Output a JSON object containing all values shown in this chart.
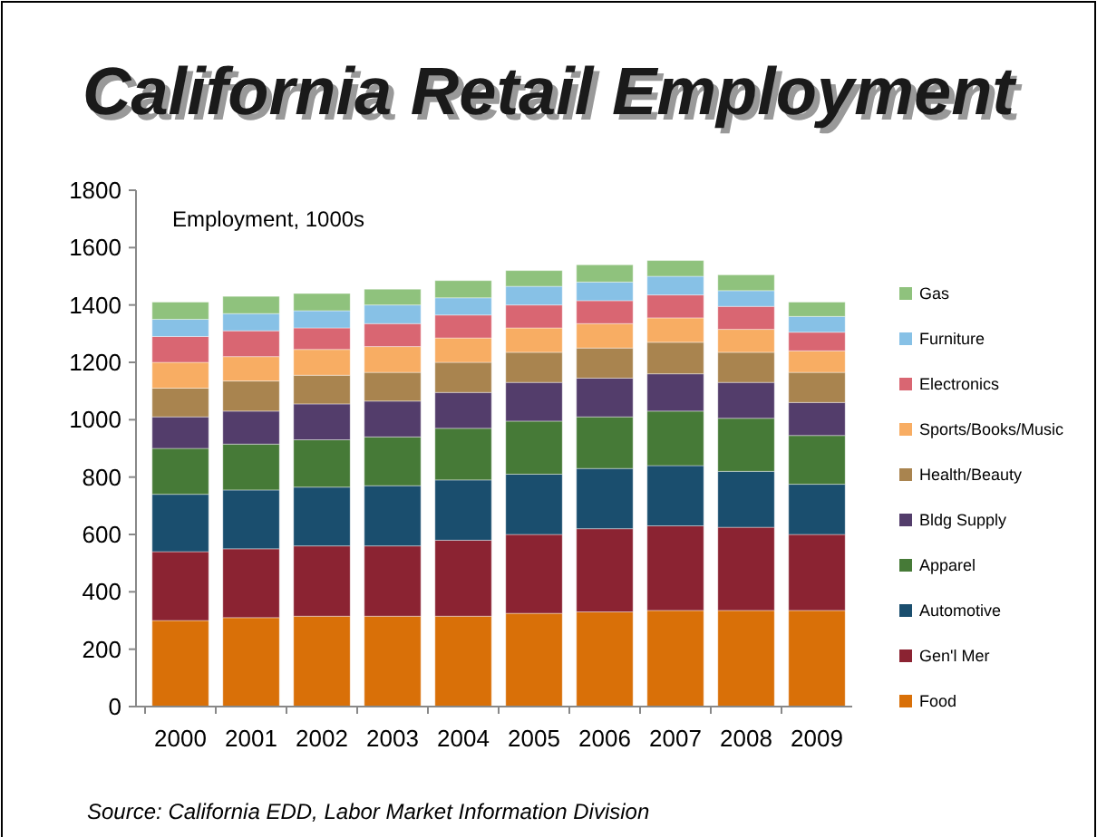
{
  "chart_data": {
    "type": "bar",
    "title": "California Retail Employment",
    "ylabel": "Employment, 1000s",
    "annotations": [
      "Source:  California EDD, Labor Market Information Division"
    ],
    "categories": [
      "2000",
      "2001",
      "2002",
      "2003",
      "2004",
      "2005",
      "2006",
      "2007",
      "2008",
      "2009"
    ],
    "stacked": true,
    "ylim": [
      0,
      1800
    ],
    "yticks": [
      0,
      200,
      400,
      600,
      800,
      1000,
      1200,
      1400,
      1600,
      1800
    ],
    "grid": false,
    "legend": "right",
    "series": [
      {
        "name": "Food",
        "color": "#d97008",
        "values": [
          300,
          310,
          315,
          315,
          315,
          325,
          330,
          335,
          335,
          335
        ]
      },
      {
        "name": "Gen'l Mer",
        "color": "#8b2332",
        "values": [
          240,
          240,
          245,
          245,
          265,
          275,
          290,
          295,
          290,
          265
        ]
      },
      {
        "name": "Automotive",
        "color": "#1a4e6e",
        "values": [
          200,
          205,
          205,
          210,
          210,
          210,
          210,
          210,
          195,
          175
        ]
      },
      {
        "name": "Apparel",
        "color": "#467a37",
        "values": [
          160,
          160,
          165,
          170,
          180,
          185,
          180,
          190,
          185,
          170
        ]
      },
      {
        "name": "Bldg Supply",
        "color": "#533d6b",
        "values": [
          110,
          115,
          125,
          125,
          125,
          135,
          135,
          130,
          125,
          115
        ]
      },
      {
        "name": "Health/Beauty",
        "color": "#a9844f",
        "values": [
          100,
          105,
          100,
          100,
          105,
          105,
          105,
          110,
          105,
          105
        ]
      },
      {
        "name": "Sports/Books/Music",
        "color": "#f8ad63",
        "values": [
          90,
          85,
          90,
          90,
          85,
          85,
          85,
          85,
          80,
          75
        ]
      },
      {
        "name": "Electronics",
        "color": "#d96672",
        "values": [
          90,
          90,
          75,
          80,
          80,
          80,
          80,
          80,
          80,
          65
        ]
      },
      {
        "name": "Furniture",
        "color": "#87c1e6",
        "values": [
          60,
          60,
          60,
          65,
          60,
          65,
          65,
          65,
          55,
          55
        ]
      },
      {
        "name": "Gas",
        "color": "#8fc27d",
        "values": [
          60,
          60,
          60,
          55,
          60,
          55,
          60,
          55,
          55,
          50
        ]
      }
    ]
  }
}
